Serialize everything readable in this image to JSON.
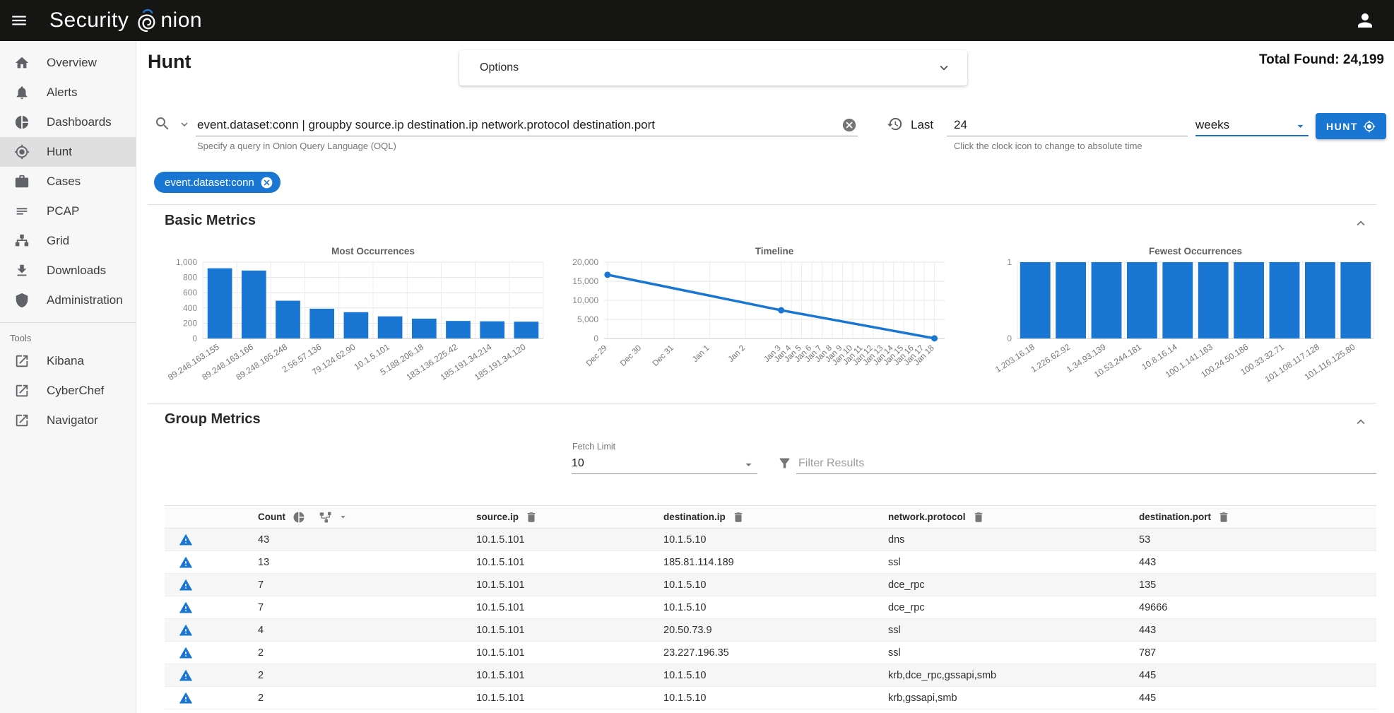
{
  "colors": {
    "accent": "#1976d2",
    "topbar_bg": "#151514",
    "bar_color": "#1976d2"
  },
  "topbar": {
    "brand_prefix": "Security",
    "brand_suffix": "nion"
  },
  "sidebar": {
    "items": [
      {
        "label": "Overview",
        "icon": "home"
      },
      {
        "label": "Alerts",
        "icon": "bell"
      },
      {
        "label": "Dashboards",
        "icon": "pie"
      },
      {
        "label": "Hunt",
        "icon": "crosshairs",
        "active": true
      },
      {
        "label": "Cases",
        "icon": "briefcase"
      },
      {
        "label": "PCAP",
        "icon": "pcap-lines"
      },
      {
        "label": "Grid",
        "icon": "grid-nodes"
      },
      {
        "label": "Downloads",
        "icon": "download"
      },
      {
        "label": "Administration",
        "icon": "shield"
      }
    ],
    "tools_label": "Tools",
    "tools": [
      {
        "label": "Kibana",
        "icon": "external-link"
      },
      {
        "label": "CyberChef",
        "icon": "external-link"
      },
      {
        "label": "Navigator",
        "icon": "external-link"
      }
    ]
  },
  "header": {
    "page_title": "Hunt",
    "options_label": "Options",
    "total_found_label": "Total Found:",
    "total_found_value": "24,199"
  },
  "query": {
    "value": "event.dataset:conn | groupby source.ip destination.ip network.protocol destination.port",
    "helper": "Specify a query in Onion Query Language (OQL)",
    "time_label": "Last",
    "time_value": "24",
    "time_unit": "weeks",
    "time_helper": "Click the clock icon to change to absolute time",
    "hunt_button": "HUNT",
    "filter_chip": "event.dataset:conn"
  },
  "sections": {
    "basic_metrics": "Basic Metrics",
    "group_metrics": "Group Metrics"
  },
  "group_controls": {
    "fetch_limit_label": "Fetch Limit",
    "fetch_limit_value": "10",
    "filter_placeholder": "Filter Results"
  },
  "chart_data": [
    {
      "type": "bar",
      "title": "Most Occurrences",
      "categories": [
        "89.248.163.155",
        "89.248.163.166",
        "89.248.165.248",
        "2.56.57.136",
        "79.124.62.90",
        "10.1.5.101",
        "5.188.206.18",
        "183.136.225.42",
        "185.191.34.214",
        "185.191.34.120"
      ],
      "values": [
        920,
        890,
        495,
        390,
        345,
        290,
        260,
        230,
        225,
        220
      ],
      "ylim": [
        0,
        1000
      ],
      "yticks": [
        0,
        200,
        400,
        600,
        800,
        1000
      ],
      "grid": true,
      "label_angle": -33
    },
    {
      "type": "line",
      "title": "Timeline",
      "x_labels": [
        "Dec 29",
        "Dec 30",
        "Dec 31",
        "Jan 1",
        "Jan 2",
        "Jan 3",
        "Jan 4",
        "Jan 5",
        "Jan 6",
        "Jan 7",
        "Jan 8",
        "Jan 9",
        "Jan 10",
        "Jan 11",
        "Jan 12",
        "Jan 13",
        "Jan 14",
        "Jan 15",
        "Jan 16",
        "Jan 17",
        "Jan 18"
      ],
      "x_label_pcts": [
        1,
        11,
        20.5,
        31,
        41.5,
        52,
        55,
        58,
        61,
        64,
        67,
        70,
        73,
        76,
        79,
        82,
        85,
        88,
        91,
        94,
        97
      ],
      "points": [
        {
          "label": "Dec 29",
          "x_pct": 1,
          "y": 16700
        },
        {
          "label": "Jan 3",
          "x_pct": 52,
          "y": 7400
        },
        {
          "label": "Jan 18",
          "x_pct": 97,
          "y": 30
        }
      ],
      "ylim": [
        0,
        20000
      ],
      "yticks": [
        0,
        5000,
        10000,
        15000,
        20000
      ],
      "grid": true,
      "label_angle": -45
    },
    {
      "type": "bar",
      "title": "Fewest Occurrences",
      "categories": [
        "1.203.16.18",
        "1.226.62.92",
        "1.34.93.139",
        "10.53.244.181",
        "10.8.16.14",
        "100.1.141.163",
        "100.24.50.186",
        "100.33.32.71",
        "101.108.117.128",
        "101.116.125.80"
      ],
      "values": [
        1,
        1,
        1,
        1,
        1,
        1,
        1,
        1,
        1,
        1
      ],
      "ylim": [
        0,
        1
      ],
      "yticks": [
        0,
        1
      ],
      "grid": true,
      "label_angle": -33
    }
  ],
  "table": {
    "columns": [
      "Count",
      "source.ip",
      "destination.ip",
      "network.protocol",
      "destination.port"
    ],
    "rows": [
      [
        "43",
        "10.1.5.101",
        "10.1.5.10",
        "dns",
        "53"
      ],
      [
        "13",
        "10.1.5.101",
        "185.81.114.189",
        "ssl",
        "443"
      ],
      [
        "7",
        "10.1.5.101",
        "10.1.5.10",
        "dce_rpc",
        "135"
      ],
      [
        "7",
        "10.1.5.101",
        "10.1.5.10",
        "dce_rpc",
        "49666"
      ],
      [
        "4",
        "10.1.5.101",
        "20.50.73.9",
        "ssl",
        "443"
      ],
      [
        "2",
        "10.1.5.101",
        "23.227.196.35",
        "ssl",
        "787"
      ],
      [
        "2",
        "10.1.5.101",
        "10.1.5.10",
        "krb,dce_rpc,gssapi,smb",
        "445"
      ],
      [
        "2",
        "10.1.5.101",
        "10.1.5.10",
        "krb,gssapi,smb",
        "445"
      ]
    ]
  }
}
